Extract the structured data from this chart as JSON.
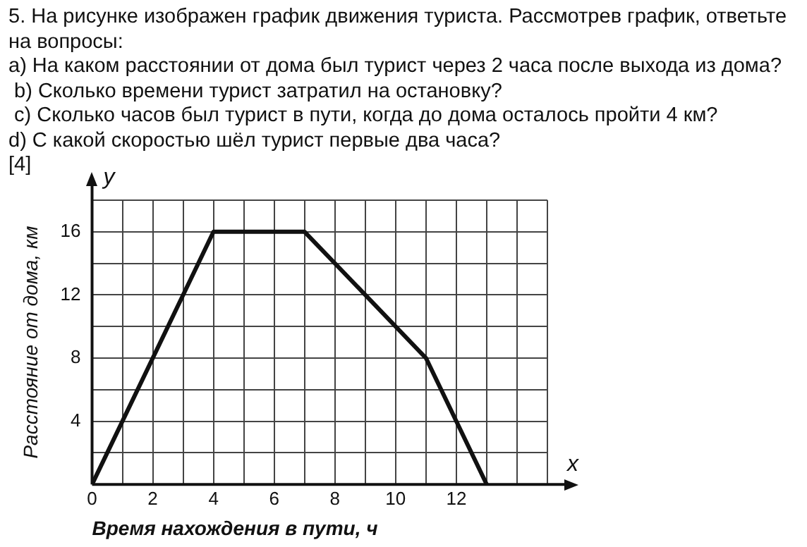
{
  "chart_data": {
    "type": "line",
    "title": "5. На рисунке изображен график движения туриста. Рассмотрев график, ответьте на вопросы:",
    "annotations": [
      "a) На каком расстоянии от дома был турист через 2 часа после выхода из дома?",
      " b) Сколько времени турист затратил на остановку?",
      " c) Сколько часов был турист в пути, когда до дома осталось пройти 4 км?",
      "d) С какой скоростью шёл турист первые два часа?",
      "[4]",
      "x",
      "y"
    ],
    "xlabel": "Время нахождения в пути, ч",
    "ylabel": "Расстояние от дома, км",
    "x": [
      0,
      4,
      7,
      11,
      13
    ],
    "series": [
      {
        "color": "#111111",
        "values": [
          0,
          16,
          16,
          8,
          0
        ]
      }
    ],
    "xlim": [
      0,
      15
    ],
    "xticks": [
      0,
      {
        "value": 1,
        "label": null
      },
      2,
      {
        "value": 3,
        "label": null
      },
      4,
      {
        "value": 5,
        "label": null
      },
      6,
      {
        "value": 7,
        "label": null
      },
      8,
      {
        "value": 9,
        "label": null
      },
      10,
      {
        "value": 11,
        "label": null
      },
      12,
      {
        "value": 13,
        "label": null
      },
      {
        "value": 14,
        "label": null
      },
      {
        "value": 15,
        "label": null
      }
    ],
    "ylim": [
      0,
      18
    ],
    "yticks": [
      {
        "value": 0,
        "label": null
      },
      {
        "value": 2,
        "label": null
      },
      4,
      {
        "value": 6,
        "label": null
      },
      8,
      {
        "value": 10,
        "label": null
      },
      12,
      {
        "value": 14,
        "label": null
      },
      16,
      {
        "value": 18,
        "label": null
      }
    ],
    "grid": true,
    "legend": false,
    "marker": "none",
    "line_style": "solid"
  }
}
